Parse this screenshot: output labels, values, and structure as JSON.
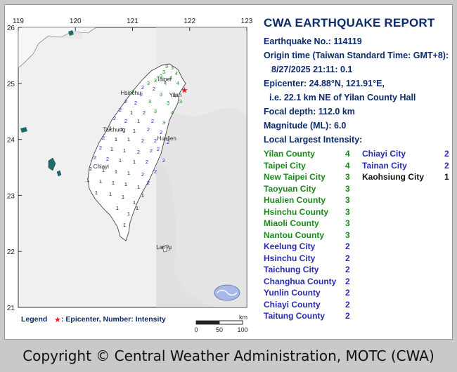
{
  "report": {
    "title": "CWA EARTHQUAKE REPORT",
    "eq_no": "Earthquake No.: 114119",
    "origin_label": "Origin time (Taiwan Standard Time: GMT+8):",
    "origin_time": "8/27/2025 21:11: 0.1",
    "epicenter": "Epicenter: 24.88°N, 121.91°E,",
    "epicenter_desc": "i.e. 22.1 km NE of Yilan County Hall",
    "depth": "Focal depth: 112.0 km",
    "magnitude": "Magnitude (ML): 6.0",
    "intensity_label": "Local Largest Intensity:"
  },
  "colors": {
    "int4": "#1a8a1a",
    "int3": "#1a8a1a",
    "int2": "#2a2ab0",
    "int1": "#111111",
    "heading": "#0d2b6b",
    "epicenter": "#e0201c"
  },
  "intensities_left": [
    {
      "name": "Yilan County",
      "value": "4",
      "level": 4
    },
    {
      "name": "Taipei City",
      "value": "4",
      "level": 4
    },
    {
      "name": "New Taipei City",
      "value": "3",
      "level": 3
    },
    {
      "name": "Taoyuan City",
      "value": "3",
      "level": 3
    },
    {
      "name": "Hualien County",
      "value": "3",
      "level": 3
    },
    {
      "name": "Hsinchu County",
      "value": "3",
      "level": 3
    },
    {
      "name": "Miaoli County",
      "value": "3",
      "level": 3
    },
    {
      "name": "Nantou County",
      "value": "3",
      "level": 3
    },
    {
      "name": "Keelung City",
      "value": "2",
      "level": 2
    },
    {
      "name": "Hsinchu City",
      "value": "2",
      "level": 2
    },
    {
      "name": "Taichung City",
      "value": "2",
      "level": 2
    },
    {
      "name": "Changhua County",
      "value": "2",
      "level": 2
    },
    {
      "name": "Yunlin County",
      "value": "2",
      "level": 2
    },
    {
      "name": "Chiayi County",
      "value": "2",
      "level": 2
    },
    {
      "name": "Taitung County",
      "value": "2",
      "level": 2
    }
  ],
  "intensities_right": [
    {
      "name": "Chiayi City",
      "value": "2",
      "level": 2
    },
    {
      "name": "Tainan City",
      "value": "2",
      "level": 2
    },
    {
      "name": "Kaohsiung City",
      "value": "1",
      "level": 1
    }
  ],
  "map": {
    "lon_ticks": [
      "119",
      "120",
      "121",
      "122",
      "123"
    ],
    "lat_ticks": [
      "26",
      "25",
      "24",
      "23",
      "22",
      "21"
    ],
    "city_labels": [
      {
        "name": "Taipei",
        "lon": 121.55,
        "lat": 25.04
      },
      {
        "name": "Hsinchu",
        "lon": 120.97,
        "lat": 24.8
      },
      {
        "name": "Yilan",
        "lon": 121.75,
        "lat": 24.76
      },
      {
        "name": "Taichung",
        "lon": 120.68,
        "lat": 24.14
      },
      {
        "name": "Hualien",
        "lon": 121.6,
        "lat": 23.98
      },
      {
        "name": "Chiayi",
        "lon": 120.45,
        "lat": 23.48
      },
      {
        "name": "Lanyu",
        "lon": 121.55,
        "lat": 22.04
      }
    ],
    "epicenter": {
      "lon": 121.91,
      "lat": 24.88
    },
    "legend_label": "Legend",
    "legend_text": ": Epicenter, Number: Intensity",
    "scale_unit": "km",
    "scale_ticks": [
      "0",
      "50",
      "100"
    ]
  },
  "copyright": "Copyright © Central Weather Administration, MOTC (CWA)"
}
